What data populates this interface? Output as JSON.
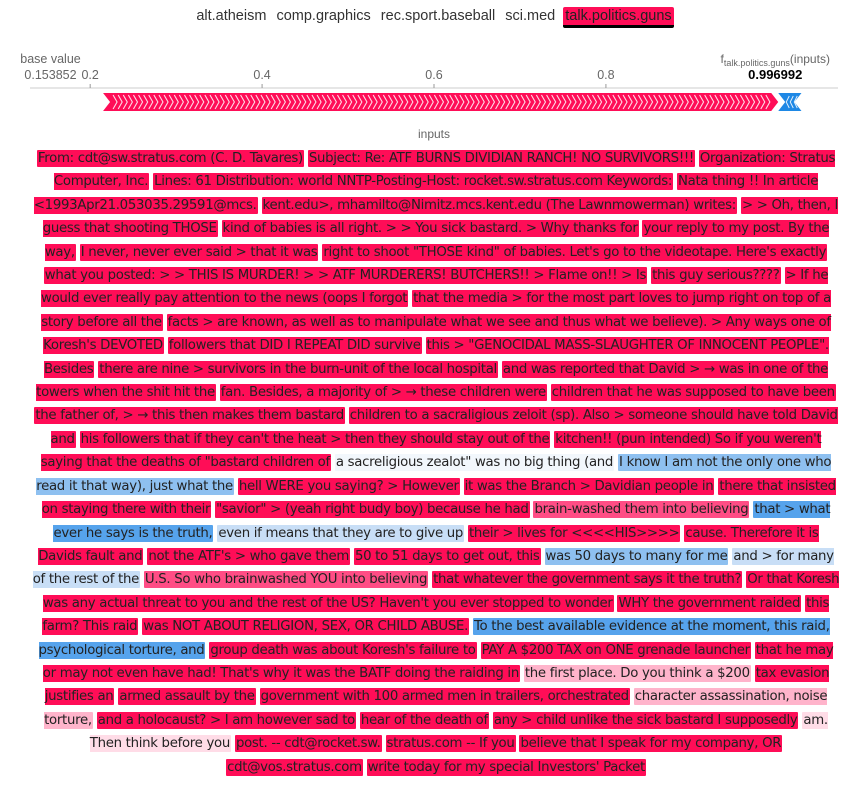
{
  "classes": [
    "alt.atheism",
    "comp.graphics",
    "rec.sport.baseball",
    "sci.med",
    "talk.politics.guns"
  ],
  "active_class": "talk.politics.guns",
  "chart_data": {
    "type": "force",
    "base_value_label": "base value",
    "base_value": 0.153852,
    "base_value_text": "0.153852",
    "output_label_prefix": "f",
    "output_label_subscript": "talk.politics.guns",
    "output_label_suffix": "(inputs)",
    "output_value": 0.996992,
    "output_value_text": "0.996992",
    "xlim": [
      0.13,
      1.07
    ],
    "ticks": [
      0.2,
      0.4,
      0.6,
      0.8
    ],
    "tick_labels": [
      "0.2",
      "0.4",
      "0.6",
      "0.8"
    ],
    "positive_color": "#ff0d57",
    "negative_color": "#1e88e5"
  },
  "inputs_label": "inputs",
  "tokens": [
    {
      "t": "From: cdt@sw.stratus.com (C. D. Tavares)",
      "c": "p3"
    },
    {
      "t": "Subject: Re: ATF BURNS DIVIDIAN RANCH! NO SURVIVORS!!!",
      "c": "p3"
    },
    {
      "t": "Organization: Stratus Computer, Inc.",
      "c": "p3"
    },
    {
      "t": "Lines: 61 Distribution: world NNTP-Posting-Host: rocket.sw.stratus.com Keywords:",
      "c": "p3"
    },
    {
      "t": "Nata thing !! In article <1993Apr21.053035.29591@mcs.",
      "c": "p3"
    },
    {
      "t": "kent.edu>, mhamilto@Nimitz.mcs.kent.edu (The Lawnmowerman) writes:",
      "c": "p3"
    },
    {
      "t": "> > Oh, then, I guess that shooting THOSE",
      "c": "p3"
    },
    {
      "t": "kind of babies is all right. > > You sick bastard. > Why thanks for",
      "c": "p3"
    },
    {
      "t": "your reply to my post. By the way,",
      "c": "p3"
    },
    {
      "t": "I never, never ever said > that it was",
      "c": "p3"
    },
    {
      "t": "right to shoot \"THOSE kind\" of babies. Let's go to the videotape. Here's exactly",
      "c": "p3"
    },
    {
      "t": "what you posted: > > THIS IS MURDER! > > ATF MURDERERS! BUTCHERS!! > Flame on!! > Is",
      "c": "p3"
    },
    {
      "t": "this guy serious????",
      "c": "p3"
    },
    {
      "t": "> If he would ever really pay attention to the news (oops I forgot",
      "c": "p3"
    },
    {
      "t": "that the media > for the most part loves to jump right on top of a story before all the",
      "c": "p3"
    },
    {
      "t": "facts > are known, as well as to manipulate what we see and thus what we believe). > Any ways one of Koresh's DEVOTED",
      "c": "p3"
    },
    {
      "t": "followers that DID I REPEAT DID survive",
      "c": "p3"
    },
    {
      "t": "this > \"GENOCIDAL MASS-SLAUGHTER OF INNOCENT PEOPLE\". Besides",
      "c": "p3"
    },
    {
      "t": "there are nine > survivors in the burn-unit of the local hospital",
      "c": "p3"
    },
    {
      "t": "and was reported that David > → was in one of the towers when the shit hit the",
      "c": "p3"
    },
    {
      "t": "fan. Besides, a majority of > → these children were",
      "c": "p3"
    },
    {
      "t": "children that he was supposed to have been",
      "c": "p3"
    },
    {
      "t": "the father of, > → this then makes them bastard",
      "c": "p3"
    },
    {
      "t": "children to a sacraligious zeloit (sp). Also > someone should have told David and",
      "c": "p3"
    },
    {
      "t": "his followers that if they can't the heat > then they should stay out of the",
      "c": "p3"
    },
    {
      "t": "kitchen!! (pun intended) So if you weren't saying that the deaths of \"bastard children of",
      "c": "p3"
    },
    {
      "t": "a sacreligious zealot\" was no big thing (and",
      "c": "n0"
    },
    {
      "t": "I know I am not the only one who read it that way), just what the",
      "c": "n2"
    },
    {
      "t": "hell WERE you saying? > However",
      "c": "p3"
    },
    {
      "t": "it was the Branch > Davidian people in",
      "c": "p3"
    },
    {
      "t": "there that insisted on staying there with their",
      "c": "p3"
    },
    {
      "t": "\"savior\" > (yeah right budy boy) because he had",
      "c": "p3"
    },
    {
      "t": "brain-washed them into believing",
      "c": "p2"
    },
    {
      "t": "that > what ever he says is the truth,",
      "c": "n3"
    },
    {
      "t": "even if means that they are to give up",
      "c": "n1"
    },
    {
      "t": "their > lives for <<<<HIS>>>>",
      "c": "p3"
    },
    {
      "t": "cause. Therefore it is Davids fault and",
      "c": "p3"
    },
    {
      "t": "not the ATF's > who gave them",
      "c": "p3"
    },
    {
      "t": "50 to 51 days to get out, this",
      "c": "p3"
    },
    {
      "t": "was 50 days to many for me",
      "c": "n2"
    },
    {
      "t": "and > for many of the rest of the",
      "c": "n1"
    },
    {
      "t": "U.S. So who brainwashed YOU into believing",
      "c": "p2"
    },
    {
      "t": "that whatever the government says it the truth?",
      "c": "p3"
    },
    {
      "t": "Or that Koresh was any actual threat to you and the rest of the US? Haven't you ever stopped to wonder",
      "c": "p3"
    },
    {
      "t": "WHY the government raided",
      "c": "p3"
    },
    {
      "t": "this farm? This raid",
      "c": "p3"
    },
    {
      "t": "was NOT ABOUT RELIGION, SEX, OR CHILD ABUSE.",
      "c": "p3"
    },
    {
      "t": "To the best available evidence at the moment, this raid, psychological torture, and",
      "c": "n3"
    },
    {
      "t": "group death was about Koresh's failure to",
      "c": "p3"
    },
    {
      "t": "PAY A $200 TAX on ONE grenade launcher",
      "c": "p3"
    },
    {
      "t": "that he may or may not even have had! That's why it was the BATF doing the raiding in",
      "c": "p3"
    },
    {
      "t": "the first place. Do you think a $200",
      "c": "p1"
    },
    {
      "t": "tax evasion justifies an",
      "c": "p3"
    },
    {
      "t": "armed assault by the",
      "c": "p3"
    },
    {
      "t": "government with 100 armed men in trailers, orchestrated",
      "c": "p3"
    },
    {
      "t": "character assassination, noise torture,",
      "c": "p1"
    },
    {
      "t": "and a holocaust? > I am however sad to",
      "c": "p3"
    },
    {
      "t": "hear of the death of",
      "c": "p3"
    },
    {
      "t": "any > child unlike the sick bastard I supposedly",
      "c": "p3"
    },
    {
      "t": "am. Then think before you",
      "c": "p0"
    },
    {
      "t": "post. -- cdt@rocket.sw.",
      "c": "p3"
    },
    {
      "t": "stratus.com -- If you",
      "c": "p3"
    },
    {
      "t": "believe that I speak for my company, OR",
      "c": "p3"
    },
    {
      "t": "cdt@vos.stratus.com",
      "c": "p3"
    },
    {
      "t": "write today for my special Investors' Packet",
      "c": "p3"
    }
  ]
}
